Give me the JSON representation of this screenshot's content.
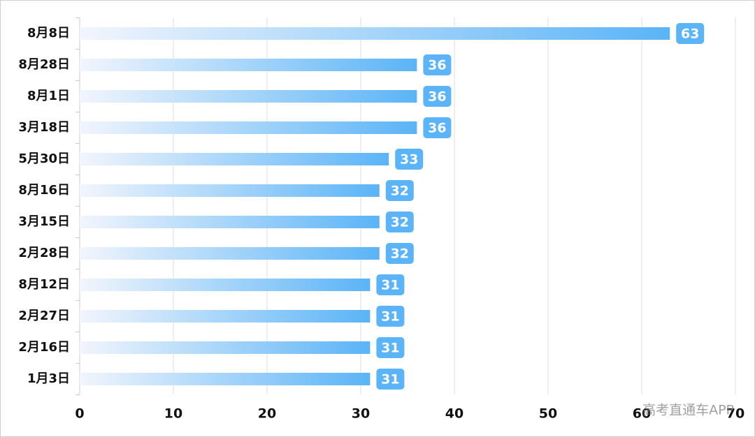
{
  "chart_data": {
    "type": "bar",
    "orientation": "horizontal",
    "categories": [
      "8月8日",
      "8月28日",
      "8月1日",
      "3月18日",
      "5月30日",
      "8月16日",
      "3月15日",
      "2月28日",
      "8月12日",
      "2月27日",
      "2月16日",
      "1月3日"
    ],
    "values": [
      63,
      36,
      36,
      36,
      33,
      32,
      32,
      32,
      31,
      31,
      31,
      31
    ],
    "color": "#5ab4f7",
    "xlim": [
      0,
      70
    ],
    "xticks": [
      0,
      10,
      20,
      30,
      40,
      50,
      60,
      70
    ],
    "grid": true,
    "watermark": "高考直通车APP"
  }
}
